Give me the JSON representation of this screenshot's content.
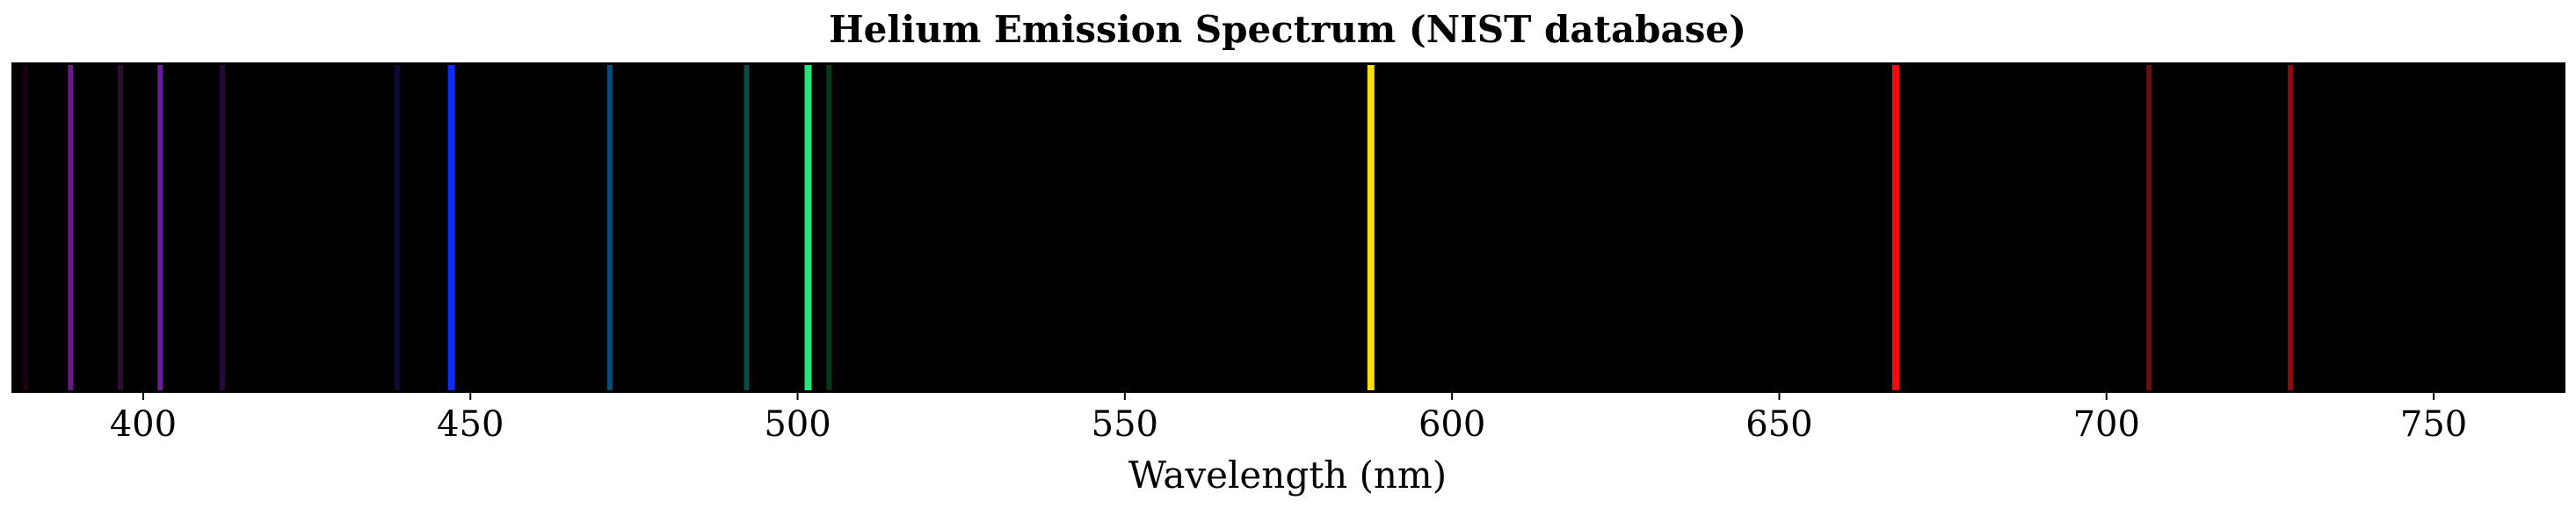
{
  "chart_data": {
    "type": "spectrum",
    "title": "Helium Emission Spectrum (NIST database)",
    "xlabel": "Wavelength (nm)",
    "ylabel": "",
    "xlim": [
      380,
      770
    ],
    "xticks": [
      400,
      450,
      500,
      550,
      600,
      650,
      700,
      750
    ],
    "grid": false,
    "legend": "none",
    "background_color": "#000000",
    "lines": [
      {
        "wavelength": 382.0,
        "color": "#1c0014",
        "intensity": 0.25
      },
      {
        "wavelength": 388.9,
        "color": "#6a1a86",
        "intensity": 0.6
      },
      {
        "wavelength": 396.5,
        "color": "#2e0d33",
        "intensity": 0.3
      },
      {
        "wavelength": 402.6,
        "color": "#6a1ca0",
        "intensity": 0.7
      },
      {
        "wavelength": 412.1,
        "color": "#24083e",
        "intensity": 0.3
      },
      {
        "wavelength": 438.8,
        "color": "#0e0a36",
        "intensity": 0.2
      },
      {
        "wavelength": 447.1,
        "color": "#0a2eff",
        "intensity": 1.0
      },
      {
        "wavelength": 471.3,
        "color": "#035080",
        "intensity": 0.6
      },
      {
        "wavelength": 492.2,
        "color": "#054e46",
        "intensity": 0.6
      },
      {
        "wavelength": 501.6,
        "color": "#22e87a",
        "intensity": 1.0
      },
      {
        "wavelength": 504.8,
        "color": "#053a16",
        "intensity": 0.5
      },
      {
        "wavelength": 587.6,
        "color": "#ffdc0c",
        "intensity": 1.0
      },
      {
        "wavelength": 667.8,
        "color": "#ff0a0a",
        "intensity": 1.0
      },
      {
        "wavelength": 706.5,
        "color": "#700e0e",
        "intensity": 0.7
      },
      {
        "wavelength": 728.1,
        "color": "#8a0c0c",
        "intensity": 0.75
      }
    ]
  }
}
